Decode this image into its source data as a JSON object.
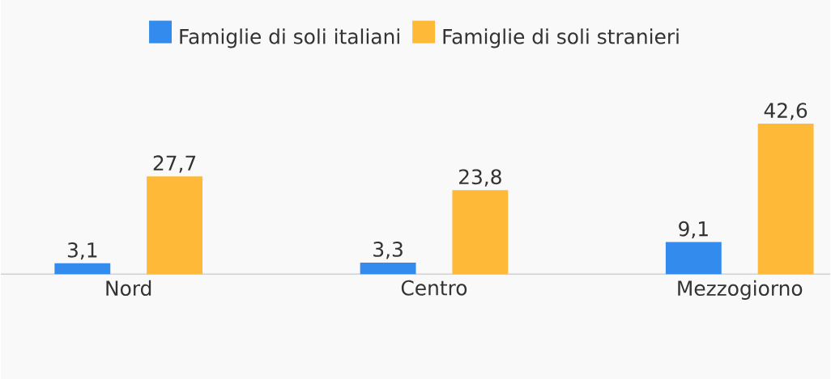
{
  "chart_data": {
    "type": "bar",
    "categories": [
      "Nord",
      "Centro",
      "Mezzogiorno"
    ],
    "series": [
      {
        "name": "Famiglie di soli italiani",
        "color": "#338bed",
        "values": [
          3.1,
          3.3,
          9.1
        ],
        "value_labels": [
          "3,1",
          "3,3",
          "9,1"
        ]
      },
      {
        "name": "Famiglie di soli stranieri",
        "color": "#ffb938",
        "values": [
          27.7,
          23.8,
          42.6
        ],
        "value_labels": [
          "27,7",
          "23,8",
          "42,6"
        ]
      }
    ],
    "legend": "top"
  }
}
